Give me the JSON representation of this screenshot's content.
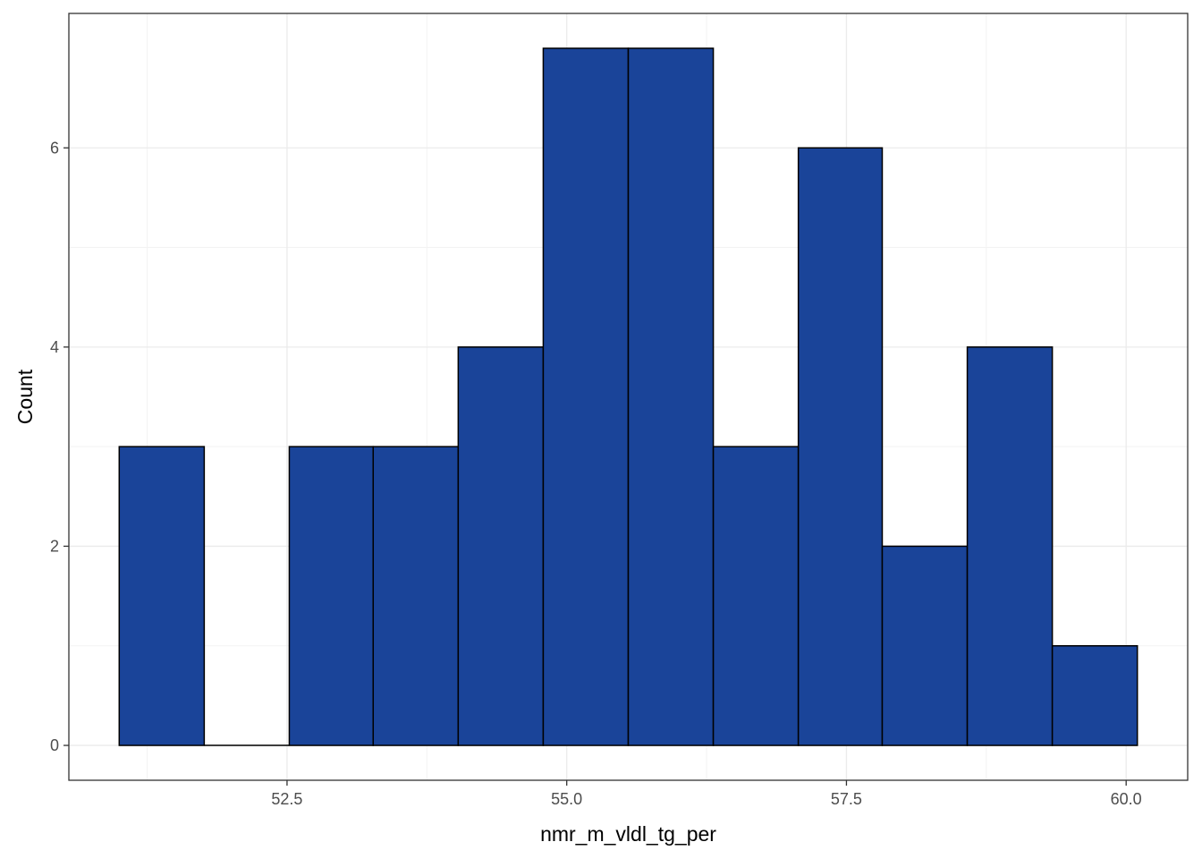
{
  "chart_data": {
    "type": "bar",
    "subtype": "histogram",
    "xlabel": "nmr_m_vldl_tg_per",
    "ylabel": "Count",
    "bins": [
      {
        "x0": 51.0,
        "x1": 51.76,
        "count": 3
      },
      {
        "x0": 51.76,
        "x1": 52.52,
        "count": 0
      },
      {
        "x0": 52.52,
        "x1": 53.27,
        "count": 3
      },
      {
        "x0": 53.27,
        "x1": 54.03,
        "count": 3
      },
      {
        "x0": 54.03,
        "x1": 54.79,
        "count": 4
      },
      {
        "x0": 54.79,
        "x1": 55.55,
        "count": 7
      },
      {
        "x0": 55.55,
        "x1": 56.31,
        "count": 7
      },
      {
        "x0": 56.31,
        "x1": 57.07,
        "count": 3
      },
      {
        "x0": 57.07,
        "x1": 57.82,
        "count": 6
      },
      {
        "x0": 57.82,
        "x1": 58.58,
        "count": 2
      },
      {
        "x0": 58.58,
        "x1": 59.34,
        "count": 4
      },
      {
        "x0": 59.34,
        "x1": 60.1,
        "count": 1
      }
    ],
    "x_ticks": [
      52.5,
      55.0,
      57.5,
      60.0
    ],
    "x_tick_labels": [
      "52.5",
      "55.0",
      "57.5",
      "60.0"
    ],
    "y_ticks": [
      0,
      2,
      4,
      6
    ],
    "y_tick_labels": [
      "0",
      "2",
      "4",
      "6"
    ],
    "xlim": [
      50.55,
      60.55
    ],
    "ylim": [
      -0.35,
      7.35
    ],
    "grid": true,
    "colors": {
      "bar_fill": "#1a4499",
      "bar_stroke": "#000000",
      "grid_major": "#ebebeb",
      "grid_minor": "#f3f3f3",
      "panel_border": "#333333"
    }
  }
}
